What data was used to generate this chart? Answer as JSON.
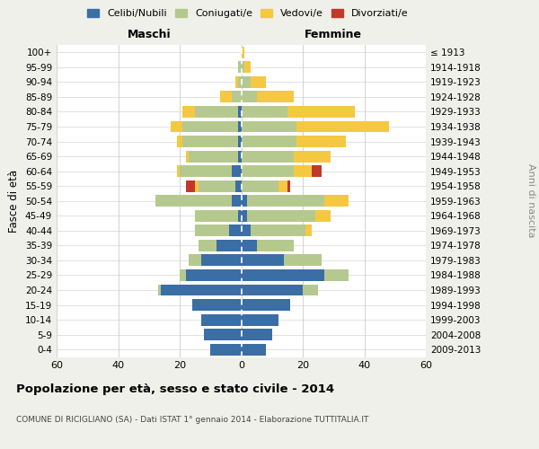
{
  "age_groups": [
    "0-4",
    "5-9",
    "10-14",
    "15-19",
    "20-24",
    "25-29",
    "30-34",
    "35-39",
    "40-44",
    "45-49",
    "50-54",
    "55-59",
    "60-64",
    "65-69",
    "70-74",
    "75-79",
    "80-84",
    "85-89",
    "90-94",
    "95-99",
    "100+"
  ],
  "birth_years": [
    "2009-2013",
    "2004-2008",
    "1999-2003",
    "1994-1998",
    "1989-1993",
    "1984-1988",
    "1979-1983",
    "1974-1978",
    "1969-1973",
    "1964-1968",
    "1959-1963",
    "1954-1958",
    "1949-1953",
    "1944-1948",
    "1939-1943",
    "1934-1938",
    "1929-1933",
    "1924-1928",
    "1919-1923",
    "1914-1918",
    "≤ 1913"
  ],
  "colors": {
    "celibi": "#3a6ea5",
    "coniugati": "#b5c98e",
    "vedovi": "#f5c842",
    "divorziati": "#c0392b"
  },
  "maschi": {
    "celibi": [
      10,
      12,
      13,
      16,
      26,
      18,
      13,
      8,
      4,
      1,
      3,
      2,
      3,
      1,
      1,
      1,
      1,
      0,
      0,
      0,
      0
    ],
    "coniugati": [
      0,
      0,
      0,
      0,
      1,
      2,
      4,
      6,
      11,
      14,
      25,
      12,
      17,
      16,
      18,
      18,
      14,
      3,
      1,
      1,
      0
    ],
    "vedovi": [
      0,
      0,
      0,
      0,
      0,
      0,
      0,
      0,
      0,
      0,
      0,
      1,
      1,
      1,
      2,
      4,
      4,
      4,
      1,
      0,
      0
    ],
    "divorziati": [
      0,
      0,
      0,
      0,
      0,
      0,
      0,
      0,
      0,
      0,
      0,
      3,
      0,
      0,
      0,
      0,
      0,
      0,
      0,
      0,
      0
    ]
  },
  "femmine": {
    "celibi": [
      8,
      10,
      12,
      16,
      20,
      27,
      14,
      5,
      3,
      2,
      2,
      0,
      0,
      0,
      0,
      0,
      0,
      0,
      0,
      0,
      0
    ],
    "coniugati": [
      0,
      0,
      0,
      0,
      5,
      8,
      12,
      12,
      18,
      22,
      25,
      12,
      17,
      17,
      18,
      18,
      15,
      5,
      3,
      1,
      0
    ],
    "vedovi": [
      0,
      0,
      0,
      0,
      0,
      0,
      0,
      0,
      2,
      5,
      8,
      3,
      6,
      12,
      16,
      30,
      22,
      12,
      5,
      2,
      1
    ],
    "divorziati": [
      0,
      0,
      0,
      0,
      0,
      0,
      0,
      0,
      0,
      0,
      0,
      1,
      3,
      0,
      0,
      0,
      0,
      0,
      0,
      0,
      0
    ]
  },
  "xlim": 60,
  "title": "Popolazione per età, sesso e stato civile - 2014",
  "subtitle": "COMUNE DI RICIGLIANO (SA) - Dati ISTAT 1° gennaio 2014 - Elaborazione TUTTITALIA.IT",
  "xlabel_maschi": "Maschi",
  "xlabel_femmine": "Femmine",
  "ylabel": "Fasce di età",
  "ylabel_right": "Anni di nascita",
  "legend_labels": [
    "Celibi/Nubili",
    "Coniugati/e",
    "Vedovi/e",
    "Divorziati/e"
  ],
  "bg_color": "#f0f0eb",
  "plot_bg": "#ffffff",
  "grid_color": "#cccccc"
}
